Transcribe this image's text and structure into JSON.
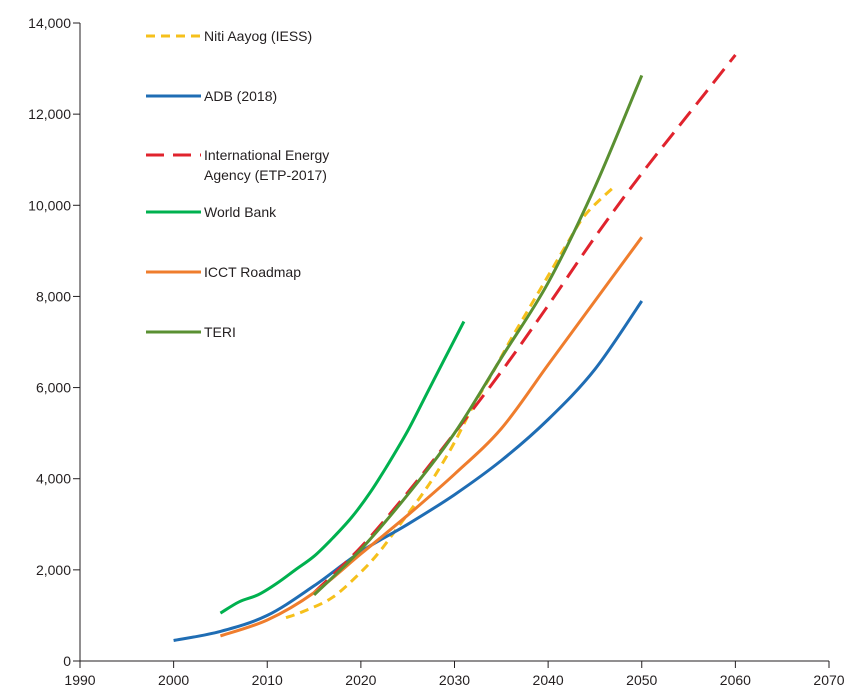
{
  "chart_data": {
    "type": "line",
    "title": "",
    "xlabel": "",
    "ylabel": "",
    "xlim": [
      1990,
      2070
    ],
    "ylim": [
      0,
      14000
    ],
    "x_ticks": [
      1990,
      2000,
      2010,
      2020,
      2030,
      2040,
      2050,
      2060,
      2070
    ],
    "x_tick_labels": [
      "1990",
      "2000",
      "2010",
      "2020",
      "2030",
      "2040",
      "2050",
      "2060",
      "2070"
    ],
    "y_ticks": [
      0,
      2000,
      4000,
      6000,
      8000,
      10000,
      12000,
      14000
    ],
    "y_tick_labels": [
      "0",
      "2,000",
      "4,000",
      "6,000",
      "8,000",
      "10,000",
      "12,000",
      "14,000"
    ],
    "grid": false,
    "legend_position": "top-left",
    "series": [
      {
        "name": "Niti Aayog (IESS)",
        "color": "#f6c01b",
        "dash": "short",
        "points": [
          [
            2012,
            950
          ],
          [
            2014,
            1100
          ],
          [
            2017,
            1400
          ],
          [
            2020,
            1950
          ],
          [
            2022,
            2400
          ],
          [
            2024,
            2950
          ],
          [
            2026,
            3500
          ],
          [
            2028,
            4100
          ],
          [
            2030,
            4800
          ],
          [
            2032,
            5600
          ],
          [
            2034,
            6300
          ],
          [
            2036,
            7050
          ],
          [
            2038,
            7750
          ],
          [
            2040,
            8450
          ],
          [
            2042,
            9150
          ],
          [
            2044,
            9800
          ],
          [
            2047,
            10400
          ]
        ]
      },
      {
        "name": "ADB (2018)",
        "color": "#1f6db4",
        "dash": "solid",
        "points": [
          [
            2000,
            450
          ],
          [
            2005,
            650
          ],
          [
            2010,
            1000
          ],
          [
            2015,
            1650
          ],
          [
            2020,
            2400
          ],
          [
            2025,
            3000
          ],
          [
            2030,
            3650
          ],
          [
            2035,
            4400
          ],
          [
            2040,
            5300
          ],
          [
            2045,
            6400
          ],
          [
            2050,
            7900
          ]
        ]
      },
      {
        "name": "International Energy Agency (ETP-2017)",
        "color": "#e0232d",
        "dash": "long",
        "points": [
          [
            2015,
            1500
          ],
          [
            2020,
            2500
          ],
          [
            2025,
            3700
          ],
          [
            2030,
            5000
          ],
          [
            2035,
            6350
          ],
          [
            2040,
            7800
          ],
          [
            2045,
            9300
          ],
          [
            2050,
            10700
          ],
          [
            2055,
            12000
          ],
          [
            2060,
            13300
          ]
        ]
      },
      {
        "name": "World Bank",
        "color": "#00b14f",
        "dash": "solid",
        "points": [
          [
            2005,
            1050
          ],
          [
            2007,
            1300
          ],
          [
            2009,
            1450
          ],
          [
            2011,
            1700
          ],
          [
            2013,
            2000
          ],
          [
            2015,
            2300
          ],
          [
            2017,
            2700
          ],
          [
            2019,
            3150
          ],
          [
            2021,
            3700
          ],
          [
            2023,
            4350
          ],
          [
            2025,
            5050
          ],
          [
            2027,
            5850
          ],
          [
            2029,
            6650
          ],
          [
            2031,
            7450
          ]
        ]
      },
      {
        "name": "ICCT Roadmap",
        "color": "#ef7d2d",
        "dash": "solid",
        "points": [
          [
            2005,
            550
          ],
          [
            2010,
            900
          ],
          [
            2015,
            1500
          ],
          [
            2020,
            2350
          ],
          [
            2025,
            3200
          ],
          [
            2030,
            4100
          ],
          [
            2035,
            5100
          ],
          [
            2040,
            6500
          ],
          [
            2045,
            7900
          ],
          [
            2050,
            9300
          ]
        ]
      },
      {
        "name": "TERI",
        "color": "#5a9032",
        "dash": "solid",
        "points": [
          [
            2015,
            1450
          ],
          [
            2020,
            2450
          ],
          [
            2025,
            3650
          ],
          [
            2030,
            5000
          ],
          [
            2035,
            6650
          ],
          [
            2040,
            8300
          ],
          [
            2045,
            10400
          ],
          [
            2050,
            12850
          ]
        ]
      }
    ],
    "legend_entries": [
      {
        "lines": [
          "Niti Aayog (IESS)"
        ]
      },
      {
        "lines": [
          "ADB (2018)"
        ]
      },
      {
        "lines": [
          "International Energy",
          "Agency (ETP-2017)"
        ]
      },
      {
        "lines": [
          "World Bank"
        ]
      },
      {
        "lines": [
          "ICCT Roadmap"
        ]
      },
      {
        "lines": [
          "TERI"
        ]
      }
    ]
  }
}
